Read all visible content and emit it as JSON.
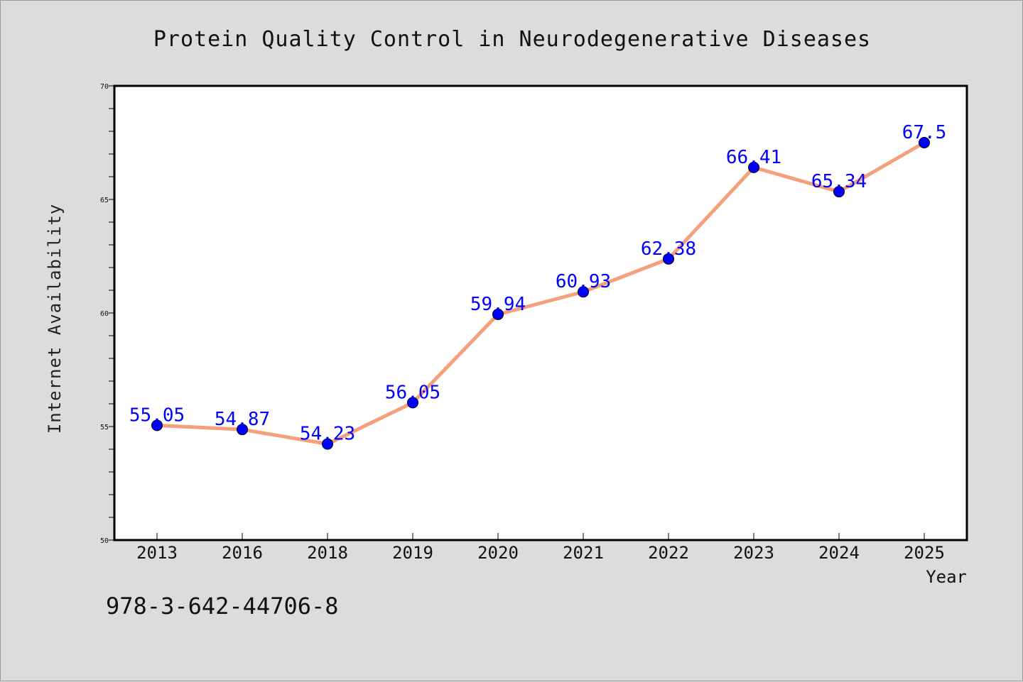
{
  "chart_data": {
    "type": "line",
    "title": "Protein Quality Control in Neurodegenerative Diseases",
    "xlabel": "Year",
    "ylabel": "Internet Availability",
    "categories": [
      "2013",
      "2016",
      "2018",
      "2019",
      "2020",
      "2021",
      "2022",
      "2023",
      "2024",
      "2025"
    ],
    "series": [
      {
        "values": [
          55.05,
          54.87,
          54.23,
          56.05,
          59.94,
          60.93,
          62.38,
          66.41,
          65.34,
          67.5
        ],
        "data_labels": [
          "55.05",
          "54.87",
          "54.23",
          "56.05",
          "59.94",
          "60.93",
          "62.38",
          "66.41",
          "65.34",
          "67.5"
        ],
        "line_color": "#f4a07a",
        "marker_color": "#0000ff",
        "label_color": "#0000ff"
      }
    ],
    "ylim": [
      50,
      70
    ],
    "yticks": [
      "50",
      "55",
      "60",
      "65",
      "70"
    ],
    "grid": false,
    "legend": "none"
  },
  "annotation": "978-3-642-44706-8",
  "colors": {
    "background": "#dcdcdc",
    "plot_background": "#ffffff"
  }
}
